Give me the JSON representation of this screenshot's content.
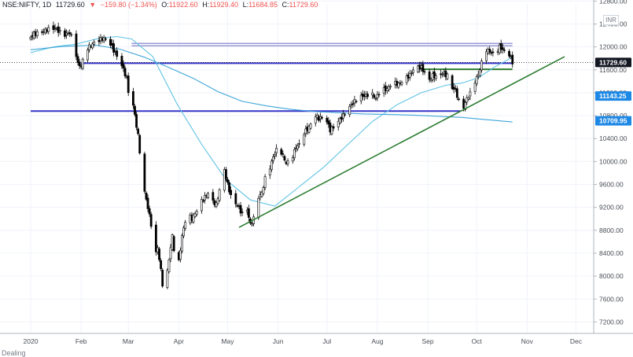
{
  "header": {
    "symbol": "NSE:NIFTY, 1D",
    "last": "11729.60",
    "change": "−159.80 (−1.34%)",
    "open_label": "O:",
    "open": "11922.60",
    "high_label": "H:",
    "high": "11929.40",
    "low_label": "L:",
    "low": "11684.85",
    "close_label": "C:",
    "close": "11729.60",
    "currency": "INR"
  },
  "bottom_legend": "Dealing",
  "colors": {
    "candle_up": "#ffffff",
    "candle_down": "#000000",
    "ma_fast": "#5fc3e4",
    "ma_slow": "#3ea6d8",
    "trendline": "#2e7d32",
    "support_line": "#3535c8",
    "resistance_band": "#9a9ad6",
    "last_price_badge": "#131722",
    "level_badge": "#1e88e5"
  },
  "chart_data": {
    "type": "candlestick",
    "y_axis": {
      "range": [
        7000,
        12750
      ],
      "ticks": [
        "7200.00",
        "7600.00",
        "8000.00",
        "8400.00",
        "8800.00",
        "9200.00",
        "9600.00",
        "10000.00",
        "10400.00",
        "10800.00",
        "11200.00",
        "11600.00",
        "12000.00",
        "12400.00",
        "12800.00"
      ],
      "tick_values": [
        7200,
        7600,
        8000,
        8400,
        8800,
        9200,
        9600,
        10000,
        10400,
        10800,
        11200,
        11600,
        12000,
        12400,
        12800
      ]
    },
    "x_axis": {
      "labels": [
        "2020",
        "Feb",
        "Mar",
        "Apr",
        "May",
        "Jun",
        "Jul",
        "Aug",
        "Sep",
        "Oct",
        "Nov",
        "Dec"
      ],
      "label_days": [
        0,
        31,
        60,
        91,
        121,
        152,
        182,
        213,
        244,
        274,
        305,
        335
      ]
    },
    "price_badges": [
      {
        "label": "11729.60",
        "value": 11729.6,
        "style": "last"
      },
      {
        "label": "11143.25",
        "value": 11143.25,
        "style": "level"
      },
      {
        "label": "10709.95",
        "value": 10709.95,
        "style": "level"
      }
    ],
    "ohlc_anchors": [
      [
        0,
        12170
      ],
      [
        2,
        12230
      ],
      [
        6,
        12250
      ],
      [
        10,
        12300
      ],
      [
        15,
        12330
      ],
      [
        20,
        12200
      ],
      [
        24,
        12250
      ],
      [
        27,
        12030
      ],
      [
        29,
        11700
      ],
      [
        31,
        11660
      ],
      [
        34,
        11960
      ],
      [
        38,
        12050
      ],
      [
        42,
        12120
      ],
      [
        45,
        12150
      ],
      [
        49,
        12050
      ],
      [
        51,
        11940
      ],
      [
        53,
        11840
      ],
      [
        56,
        11680
      ],
      [
        59,
        11450
      ],
      [
        60,
        11220
      ],
      [
        61,
        11150
      ],
      [
        63,
        10980
      ],
      [
        66,
        10450
      ],
      [
        68,
        9900
      ],
      [
        69,
        9600
      ],
      [
        72,
        9200
      ],
      [
        74,
        8900
      ],
      [
        76,
        8300
      ],
      [
        78,
        8500
      ],
      [
        80,
        8100
      ],
      [
        82,
        7620
      ],
      [
        85,
        8300
      ],
      [
        87,
        8700
      ],
      [
        89,
        8250
      ],
      [
        91,
        8250
      ],
      [
        93,
        8700
      ],
      [
        96,
        9100
      ],
      [
        99,
        9000
      ],
      [
        102,
        9150
      ],
      [
        105,
        9310
      ],
      [
        109,
        9450
      ],
      [
        112,
        9300
      ],
      [
        114,
        9250
      ],
      [
        116,
        9500
      ],
      [
        119,
        9850
      ],
      [
        121,
        9600
      ],
      [
        124,
        9300
      ],
      [
        127,
        9240
      ],
      [
        130,
        9080
      ],
      [
        133,
        9160
      ],
      [
        135,
        8900
      ],
      [
        138,
        9050
      ],
      [
        140,
        9380
      ],
      [
        142,
        9450
      ],
      [
        144,
        9700
      ],
      [
        147,
        9900
      ],
      [
        149,
        10080
      ],
      [
        151,
        10200
      ],
      [
        154,
        10160
      ],
      [
        157,
        9970
      ],
      [
        159,
        10000
      ],
      [
        161,
        10100
      ],
      [
        163,
        10250
      ],
      [
        166,
        10320
      ],
      [
        168,
        10500
      ],
      [
        171,
        10600
      ],
      [
        173,
        10700
      ],
      [
        175,
        10800
      ],
      [
        177,
        10750
      ],
      [
        180,
        10780
      ],
      [
        182,
        10700
      ],
      [
        184,
        10550
      ],
      [
        186,
        10600
      ],
      [
        189,
        10700
      ],
      [
        192,
        10800
      ],
      [
        194,
        10900
      ],
      [
        196,
        10950
      ],
      [
        198,
        11020
      ],
      [
        202,
        11130
      ],
      [
        206,
        11150
      ],
      [
        209,
        11200
      ],
      [
        212,
        11100
      ],
      [
        215,
        11250
      ],
      [
        219,
        11260
      ],
      [
        222,
        11380
      ],
      [
        226,
        11350
      ],
      [
        229,
        11420
      ],
      [
        233,
        11510
      ],
      [
        236,
        11650
      ],
      [
        240,
        11640
      ],
      [
        242,
        11550
      ],
      [
        244,
        11380
      ],
      [
        247,
        11500
      ],
      [
        250,
        11470
      ],
      [
        253,
        11540
      ],
      [
        256,
        11500
      ],
      [
        258,
        11300
      ],
      [
        261,
        11250
      ],
      [
        263,
        11050
      ],
      [
        264,
        10800
      ],
      [
        266,
        10950
      ],
      [
        268,
        11100
      ],
      [
        271,
        11220
      ],
      [
        273,
        11400
      ],
      [
        275,
        11520
      ],
      [
        278,
        11820
      ],
      [
        280,
        11950
      ],
      [
        282,
        11920
      ],
      [
        285,
        11850
      ],
      [
        288,
        12000
      ],
      [
        290,
        11950
      ],
      [
        292,
        11900
      ],
      [
        294,
        11870
      ],
      [
        296,
        11730
      ]
    ],
    "moving_average_fast": [
      [
        0,
        11900
      ],
      [
        14,
        12000
      ],
      [
        28,
        12050
      ],
      [
        42,
        12150
      ],
      [
        53,
        12180
      ],
      [
        62,
        12140
      ],
      [
        75,
        11830
      ],
      [
        90,
        11000
      ],
      [
        105,
        10300
      ],
      [
        120,
        9680
      ],
      [
        135,
        9330
      ],
      [
        150,
        9220
      ],
      [
        165,
        9560
      ],
      [
        180,
        9900
      ],
      [
        195,
        10300
      ],
      [
        210,
        10700
      ],
      [
        225,
        10990
      ],
      [
        240,
        11200
      ],
      [
        255,
        11330
      ],
      [
        265,
        11370
      ],
      [
        275,
        11460
      ],
      [
        285,
        11650
      ],
      [
        296,
        11820
      ]
    ],
    "moving_average_slow": [
      [
        0,
        11950
      ],
      [
        20,
        12010
      ],
      [
        40,
        12030
      ],
      [
        55,
        11960
      ],
      [
        70,
        11820
      ],
      [
        85,
        11640
      ],
      [
        100,
        11450
      ],
      [
        115,
        11220
      ],
      [
        130,
        11050
      ],
      [
        145,
        10970
      ],
      [
        160,
        10910
      ],
      [
        175,
        10870
      ],
      [
        190,
        10850
      ],
      [
        205,
        10830
      ],
      [
        220,
        10820
      ],
      [
        235,
        10810
      ],
      [
        250,
        10790
      ],
      [
        265,
        10770
      ],
      [
        280,
        10730
      ],
      [
        296,
        10690
      ]
    ],
    "trendline": [
      [
        128,
        8850
      ],
      [
        328,
        11830
      ]
    ],
    "horizontal_levels": [
      {
        "from": 31,
        "to": 296,
        "value": 11715,
        "kind": "support"
      },
      {
        "from": 0,
        "to": 264,
        "value": 10880,
        "kind": "support"
      },
      {
        "from": 240,
        "to": 296,
        "value": 11610,
        "kind": "support_green"
      },
      {
        "from": 62,
        "to": 296,
        "value": 12060,
        "kind": "band_upper"
      },
      {
        "from": 62,
        "to": 296,
        "value": 12020,
        "kind": "band_lower"
      }
    ],
    "dotted_level": 11729.6
  }
}
